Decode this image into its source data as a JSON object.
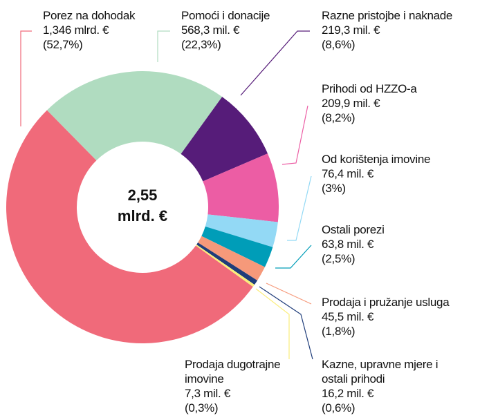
{
  "chart_data": {
    "type": "pie",
    "categories": [
      "Porez na dohodak",
      "Pomoći i donacije",
      "Razne pristojbe i naknade",
      "Prihodi od HZZO-a",
      "Od korištenja imovine",
      "Ostali porezi",
      "Prodaja i pružanje usluga",
      "Kazne, upravne mjere i ostali prihodi",
      "Prodaja dugotrajne imovine"
    ],
    "values": [
      52.7,
      22.3,
      8.6,
      8.2,
      3,
      2.5,
      1.8,
      0.6,
      0.3
    ],
    "value_labels": [
      "(52,7%)",
      "(22,3%)",
      "(8,6%)",
      "(8,2%)",
      "(3%)",
      "(2,5%)",
      "(1,8%)",
      "(0,6%)",
      "(0,3%)"
    ],
    "amount_labels": [
      "1,346 mlrd. €",
      "568,3 mil. €",
      "219,3 mil. €",
      "209,9 mil. €",
      "76,4  mil. €",
      "63,8 mil. €",
      "45,5 mil. €",
      "16,2 mil. €",
      "7,3 mil. €"
    ],
    "colors": [
      "#f06a7a",
      "#b0dcc0",
      "#561c79",
      "#ec5da4",
      "#93d9f5",
      "#009db8",
      "#f6997a",
      "#1f3d7a",
      "#fbed7a"
    ],
    "center_label": [
      "2,55",
      "mlrd. €"
    ],
    "donut": true
  }
}
